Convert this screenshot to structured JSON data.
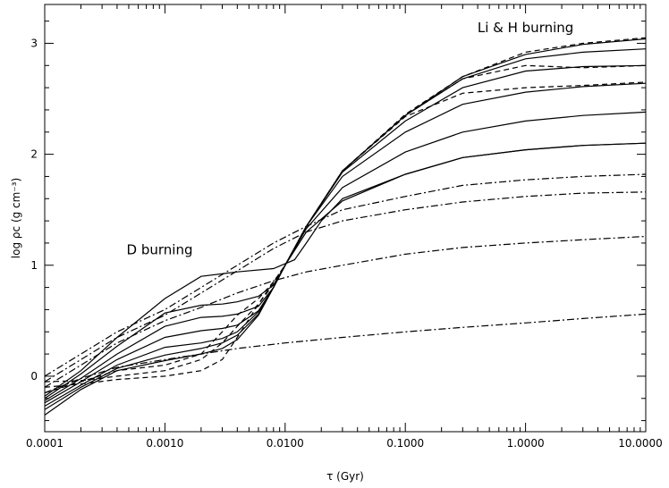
{
  "chart_data": {
    "type": "line",
    "xscale": "log",
    "xlabel": "τ (Gyr)",
    "ylabel": "log ρc (g cm⁻³)",
    "xlim": [
      0.0001,
      10.0
    ],
    "ylim": [
      -0.5,
      3.35
    ],
    "x_ticks": [
      0.0001,
      0.001,
      0.01,
      0.1,
      1.0,
      10.0
    ],
    "x_tick_labels": [
      "0.0001",
      "0.0010",
      "0.0100",
      "0.1000",
      "1.0000",
      "10.0000"
    ],
    "y_ticks": [
      0,
      1,
      2,
      3
    ],
    "y_tick_labels": [
      "0",
      "1",
      "2",
      "3"
    ],
    "grid": false,
    "annotations": [
      {
        "text": "D burning",
        "x": 0.00048,
        "y": 1.1
      },
      {
        "text": "Li & H burning",
        "x": 1.0,
        "y": 3.1
      }
    ],
    "series": [
      {
        "style": "solid",
        "points": [
          [
            0.0001,
            -0.35
          ],
          [
            0.0002,
            -0.12
          ],
          [
            0.0004,
            0.05
          ],
          [
            0.001,
            0.14
          ],
          [
            0.002,
            0.2
          ],
          [
            0.003,
            0.25
          ],
          [
            0.004,
            0.33
          ],
          [
            0.006,
            0.55
          ],
          [
            0.008,
            0.8
          ],
          [
            0.01,
            1.0
          ],
          [
            0.015,
            1.35
          ],
          [
            0.03,
            1.85
          ],
          [
            0.1,
            2.35
          ],
          [
            0.3,
            2.7
          ],
          [
            1,
            2.9
          ],
          [
            3,
            2.99
          ],
          [
            10,
            3.04
          ]
        ]
      },
      {
        "style": "solid",
        "points": [
          [
            0.0001,
            -0.3
          ],
          [
            0.0002,
            -0.1
          ],
          [
            0.0004,
            0.07
          ],
          [
            0.001,
            0.19
          ],
          [
            0.002,
            0.25
          ],
          [
            0.003,
            0.3
          ],
          [
            0.004,
            0.37
          ],
          [
            0.006,
            0.56
          ],
          [
            0.008,
            0.8
          ],
          [
            0.01,
            1.0
          ],
          [
            0.015,
            1.35
          ],
          [
            0.03,
            1.85
          ],
          [
            0.1,
            2.35
          ],
          [
            0.3,
            2.68
          ],
          [
            1,
            2.86
          ],
          [
            3,
            2.92
          ],
          [
            10,
            2.95
          ]
        ]
      },
      {
        "style": "solid",
        "points": [
          [
            0.0001,
            -0.27
          ],
          [
            0.0002,
            -0.08
          ],
          [
            0.0004,
            0.1
          ],
          [
            0.001,
            0.26
          ],
          [
            0.002,
            0.3
          ],
          [
            0.003,
            0.34
          ],
          [
            0.004,
            0.4
          ],
          [
            0.006,
            0.58
          ],
          [
            0.008,
            0.8
          ],
          [
            0.01,
            1.0
          ],
          [
            0.015,
            1.35
          ],
          [
            0.03,
            1.84
          ],
          [
            0.1,
            2.3
          ],
          [
            0.3,
            2.6
          ],
          [
            1,
            2.75
          ],
          [
            3,
            2.79
          ],
          [
            10,
            2.8
          ]
        ]
      },
      {
        "style": "solid",
        "points": [
          [
            0.0001,
            -0.24
          ],
          [
            0.0002,
            -0.05
          ],
          [
            0.0004,
            0.15
          ],
          [
            0.001,
            0.35
          ],
          [
            0.002,
            0.41
          ],
          [
            0.003,
            0.43
          ],
          [
            0.004,
            0.46
          ],
          [
            0.006,
            0.59
          ],
          [
            0.008,
            0.8
          ],
          [
            0.01,
            1.0
          ],
          [
            0.015,
            1.35
          ],
          [
            0.03,
            1.8
          ],
          [
            0.1,
            2.2
          ],
          [
            0.3,
            2.45
          ],
          [
            1,
            2.56
          ],
          [
            3,
            2.61
          ],
          [
            10,
            2.64
          ]
        ]
      },
      {
        "style": "solid",
        "points": [
          [
            0.0001,
            -0.22
          ],
          [
            0.0002,
            -0.02
          ],
          [
            0.0004,
            0.2
          ],
          [
            0.001,
            0.45
          ],
          [
            0.002,
            0.53
          ],
          [
            0.003,
            0.54
          ],
          [
            0.004,
            0.56
          ],
          [
            0.006,
            0.63
          ],
          [
            0.008,
            0.8
          ],
          [
            0.01,
            1.0
          ],
          [
            0.015,
            1.33
          ],
          [
            0.03,
            1.7
          ],
          [
            0.1,
            2.02
          ],
          [
            0.3,
            2.2
          ],
          [
            1,
            2.3
          ],
          [
            3,
            2.35
          ],
          [
            10,
            2.38
          ]
        ]
      },
      {
        "style": "solid",
        "points": [
          [
            0.0001,
            -0.2
          ],
          [
            0.0002,
            0.02
          ],
          [
            0.0004,
            0.27
          ],
          [
            0.001,
            0.57
          ],
          [
            0.002,
            0.64
          ],
          [
            0.003,
            0.65
          ],
          [
            0.004,
            0.67
          ],
          [
            0.006,
            0.72
          ],
          [
            0.008,
            0.82
          ],
          [
            0.01,
            1.0
          ],
          [
            0.015,
            1.3
          ],
          [
            0.03,
            1.58
          ],
          [
            0.1,
            1.82
          ],
          [
            0.3,
            1.97
          ],
          [
            1,
            2.04
          ],
          [
            3,
            2.08
          ],
          [
            10,
            2.1
          ]
        ]
      },
      {
        "style": "solid",
        "points": [
          [
            0.0001,
            -0.18
          ],
          [
            0.0002,
            0.05
          ],
          [
            0.0004,
            0.35
          ],
          [
            0.001,
            0.7
          ],
          [
            0.002,
            0.9
          ],
          [
            0.004,
            0.94
          ],
          [
            0.008,
            0.97
          ],
          [
            0.012,
            1.05
          ],
          [
            0.015,
            1.2
          ],
          [
            0.02,
            1.4
          ],
          [
            0.03,
            1.6
          ],
          [
            0.1,
            1.82
          ],
          [
            0.3,
            1.97
          ],
          [
            1,
            2.04
          ],
          [
            3,
            2.08
          ],
          [
            10,
            2.1
          ]
        ]
      },
      {
        "style": "dashed",
        "points": [
          [
            0.0001,
            -0.1
          ],
          [
            0.0002,
            -0.07
          ],
          [
            0.0004,
            -0.03
          ],
          [
            0.001,
            0.0
          ],
          [
            0.002,
            0.05
          ],
          [
            0.003,
            0.15
          ],
          [
            0.004,
            0.35
          ],
          [
            0.006,
            0.65
          ],
          [
            0.008,
            0.85
          ],
          [
            0.01,
            1.0
          ],
          [
            0.015,
            1.35
          ],
          [
            0.03,
            1.85
          ],
          [
            0.1,
            2.36
          ],
          [
            0.3,
            2.7
          ],
          [
            1,
            2.92
          ],
          [
            3,
            3.0
          ],
          [
            10,
            3.05
          ]
        ]
      },
      {
        "style": "dashed",
        "points": [
          [
            0.0001,
            -0.05
          ],
          [
            0.0002,
            -0.04
          ],
          [
            0.0004,
            0.0
          ],
          [
            0.001,
            0.05
          ],
          [
            0.002,
            0.15
          ],
          [
            0.003,
            0.3
          ],
          [
            0.004,
            0.45
          ],
          [
            0.006,
            0.65
          ],
          [
            0.008,
            0.83
          ],
          [
            0.01,
            1.0
          ],
          [
            0.015,
            1.35
          ],
          [
            0.03,
            1.85
          ],
          [
            0.1,
            2.35
          ],
          [
            0.3,
            2.68
          ],
          [
            1,
            2.8
          ],
          [
            3,
            2.78
          ],
          [
            10,
            2.8
          ]
        ]
      },
      {
        "style": "dashed",
        "points": [
          [
            0.0001,
            -0.15
          ],
          [
            0.0002,
            -0.05
          ],
          [
            0.0004,
            0.05
          ],
          [
            0.001,
            0.1
          ],
          [
            0.002,
            0.2
          ],
          [
            0.003,
            0.4
          ],
          [
            0.004,
            0.55
          ],
          [
            0.006,
            0.7
          ],
          [
            0.008,
            0.85
          ],
          [
            0.01,
            1.0
          ],
          [
            0.015,
            1.35
          ],
          [
            0.03,
            1.85
          ],
          [
            0.1,
            2.34
          ],
          [
            0.3,
            2.55
          ],
          [
            1,
            2.6
          ],
          [
            3,
            2.62
          ],
          [
            10,
            2.65
          ]
        ]
      },
      {
        "style": "dashdot",
        "points": [
          [
            0.0001,
            0.0
          ],
          [
            0.0002,
            0.2
          ],
          [
            0.0004,
            0.4
          ],
          [
            0.001,
            0.6
          ],
          [
            0.002,
            0.8
          ],
          [
            0.004,
            1.0
          ],
          [
            0.008,
            1.2
          ],
          [
            0.015,
            1.35
          ],
          [
            0.03,
            1.5
          ],
          [
            0.1,
            1.62
          ],
          [
            0.3,
            1.72
          ],
          [
            1,
            1.77
          ],
          [
            3,
            1.8
          ],
          [
            10,
            1.82
          ]
        ]
      },
      {
        "style": "dashdot",
        "points": [
          [
            0.0001,
            -0.05
          ],
          [
            0.0002,
            0.15
          ],
          [
            0.0004,
            0.35
          ],
          [
            0.001,
            0.55
          ],
          [
            0.002,
            0.75
          ],
          [
            0.004,
            0.95
          ],
          [
            0.008,
            1.15
          ],
          [
            0.015,
            1.3
          ],
          [
            0.03,
            1.4
          ],
          [
            0.1,
            1.5
          ],
          [
            0.3,
            1.57
          ],
          [
            1,
            1.62
          ],
          [
            3,
            1.65
          ],
          [
            10,
            1.66
          ]
        ]
      },
      {
        "style": "dashdot",
        "points": [
          [
            0.0001,
            -0.1
          ],
          [
            0.0002,
            0.1
          ],
          [
            0.0004,
            0.3
          ],
          [
            0.001,
            0.5
          ],
          [
            0.002,
            0.62
          ],
          [
            0.004,
            0.75
          ],
          [
            0.008,
            0.86
          ],
          [
            0.015,
            0.94
          ],
          [
            0.03,
            1.0
          ],
          [
            0.1,
            1.1
          ],
          [
            0.3,
            1.16
          ],
          [
            1,
            1.2
          ],
          [
            3,
            1.23
          ],
          [
            10,
            1.26
          ]
        ]
      },
      {
        "style": "dashdot",
        "points": [
          [
            0.0001,
            -0.15
          ],
          [
            0.0002,
            -0.02
          ],
          [
            0.0004,
            0.08
          ],
          [
            0.001,
            0.15
          ],
          [
            0.002,
            0.2
          ],
          [
            0.004,
            0.25
          ],
          [
            0.01,
            0.3
          ],
          [
            0.03,
            0.35
          ],
          [
            0.1,
            0.4
          ],
          [
            0.3,
            0.44
          ],
          [
            1,
            0.48
          ],
          [
            3,
            0.52
          ],
          [
            10,
            0.56
          ]
        ]
      }
    ]
  }
}
